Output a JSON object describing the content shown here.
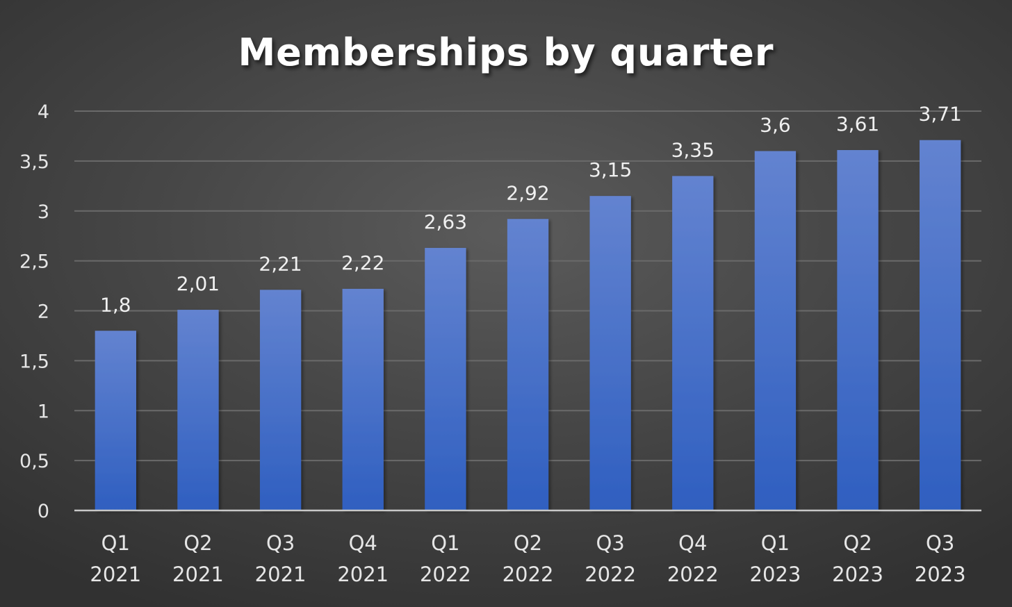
{
  "chart_data": {
    "type": "bar",
    "title": "Memberships by quarter",
    "xlabel": "",
    "ylabel": "",
    "ylim": [
      0,
      4
    ],
    "yticks": [
      "0",
      "0,5",
      "1",
      "1,5",
      "2",
      "2,5",
      "3",
      "3,5",
      "4"
    ],
    "ytick_values": [
      0,
      0.5,
      1,
      1.5,
      2,
      2.5,
      3,
      3.5,
      4
    ],
    "categories": [
      [
        "Q1",
        "2021"
      ],
      [
        "Q2",
        "2021"
      ],
      [
        "Q3",
        "2021"
      ],
      [
        "Q4",
        "2021"
      ],
      [
        "Q1",
        "2022"
      ],
      [
        "Q2",
        "2022"
      ],
      [
        "Q3",
        "2022"
      ],
      [
        "Q4",
        "2022"
      ],
      [
        "Q1",
        "2023"
      ],
      [
        "Q2",
        "2023"
      ],
      [
        "Q3",
        "2023"
      ]
    ],
    "values": [
      1.8,
      2.01,
      2.21,
      2.22,
      2.63,
      2.92,
      3.15,
      3.35,
      3.6,
      3.61,
      3.71
    ],
    "data_labels": [
      "1,8",
      "2,01",
      "2,21",
      "2,22",
      "2,63",
      "2,92",
      "3,15",
      "3,35",
      "3,6",
      "3,61",
      "3,71"
    ],
    "grid": true,
    "legend": "none",
    "colors": {
      "bar_top": "#6383d0",
      "bar_bottom": "#2f5fc0",
      "grid": "#6a6a6a",
      "axis": "#c8c8c8",
      "text": "#e6e6e6",
      "title": "#ffffff"
    }
  }
}
